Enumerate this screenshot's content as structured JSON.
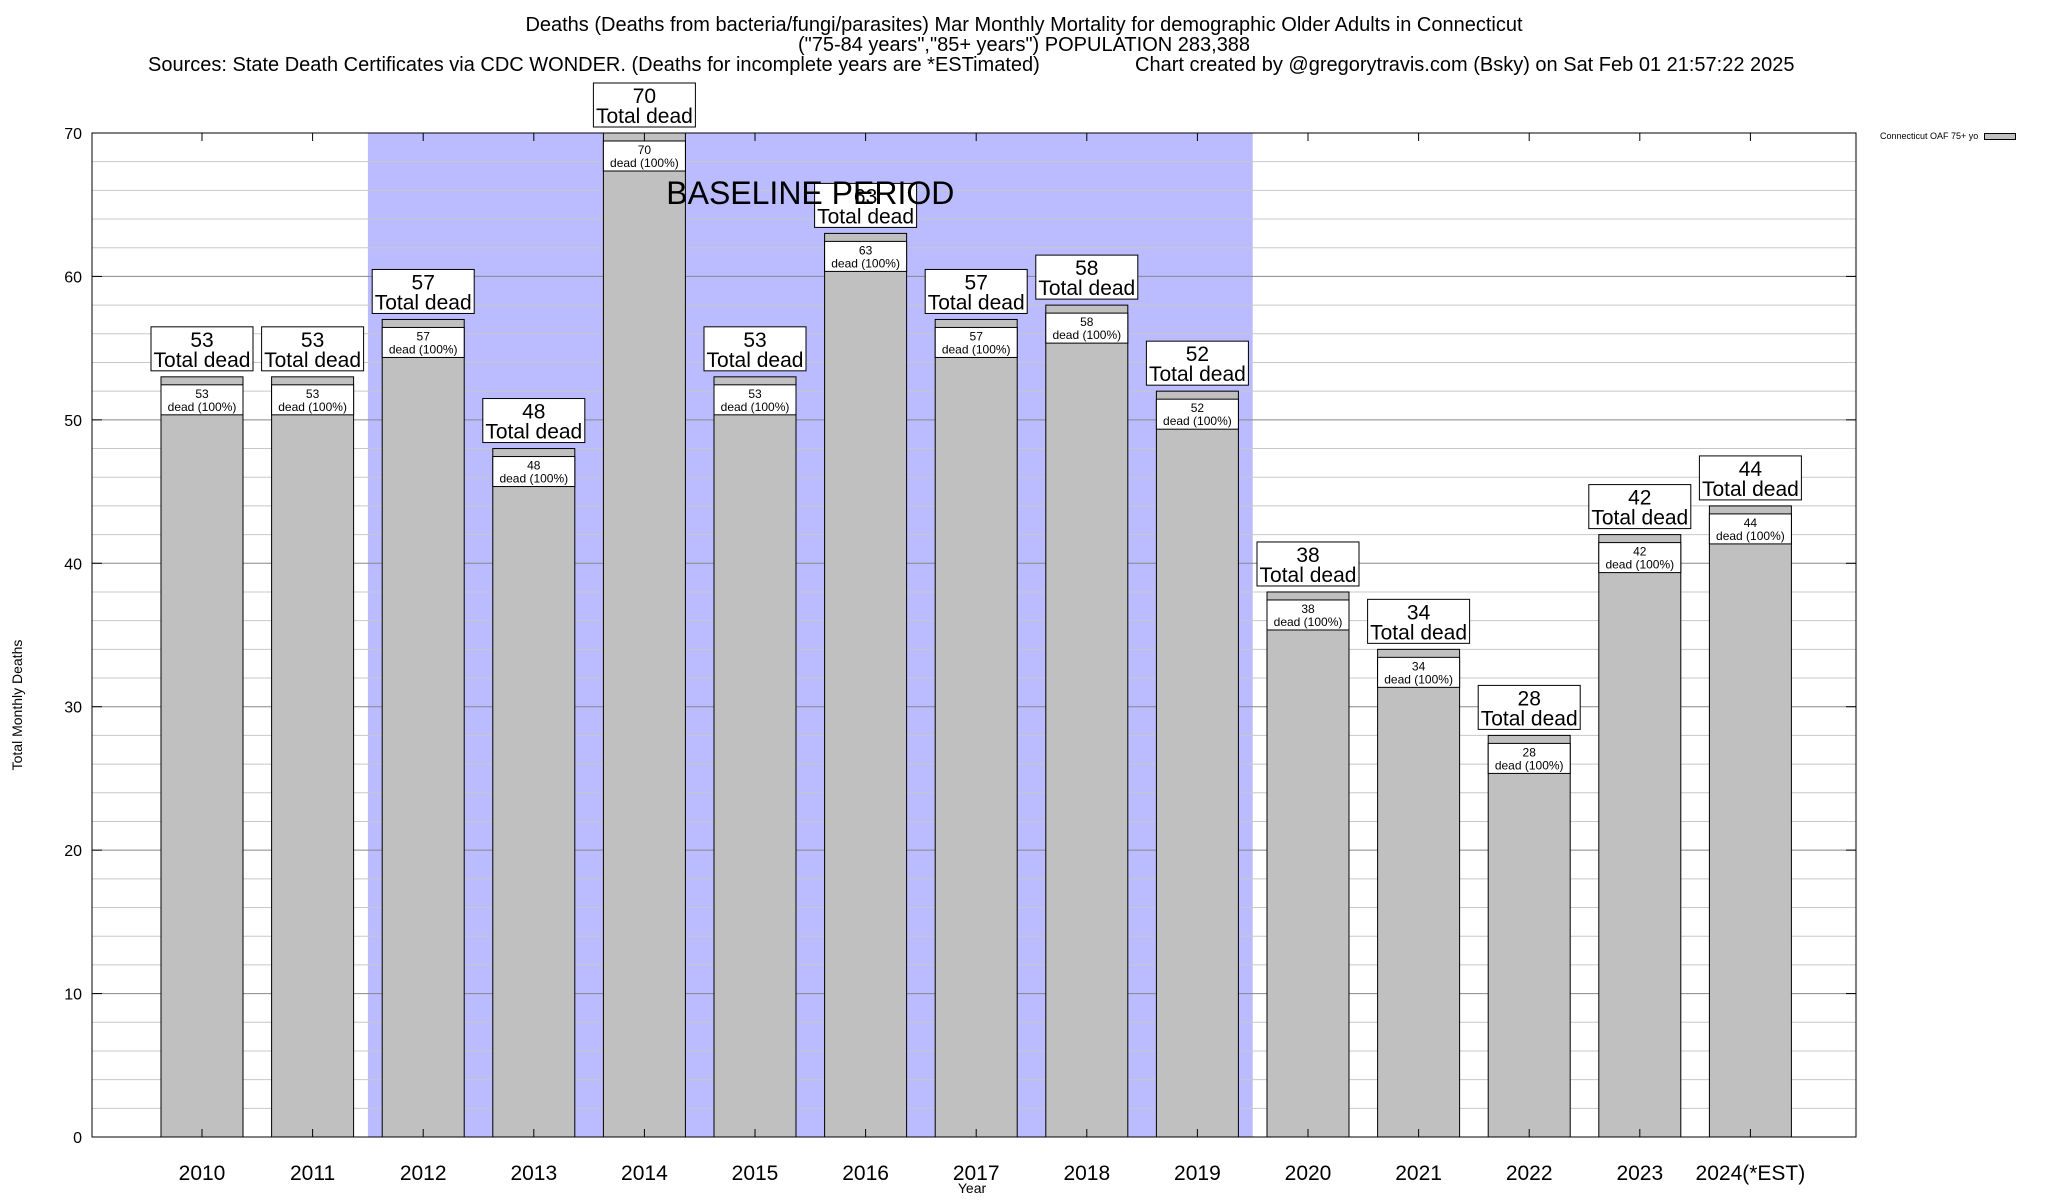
{
  "chart_data": {
    "type": "bar",
    "title_lines": [
      "Deaths (Deaths from bacteria/fungi/parasites) Mar Monthly Mortality for demographic Older Adults in Connecticut",
      "(\"75-84 years\",\"85+ years\") POPULATION 283,388"
    ],
    "source": "Sources: State Death Certificates via CDC WONDER. (Deaths for incomplete years are *ESTimated)",
    "credit": "Chart created by @gregorytravis.com (Bsky) on Sat Feb 01 21:57:22 2025",
    "xlabel": "Year",
    "ylabel": "Total Monthly Deaths",
    "ylim": [
      0,
      70
    ],
    "yticks": [
      0,
      10,
      20,
      30,
      40,
      50,
      60,
      70
    ],
    "categories": [
      "2010",
      "2011",
      "2012",
      "2013",
      "2014",
      "2015",
      "2016",
      "2017",
      "2018",
      "2019",
      "2020",
      "2021",
      "2022",
      "2023",
      "2024(*EST)"
    ],
    "series": [
      {
        "name": "Connecticut OAF 75+ yo",
        "values": [
          53,
          53,
          57,
          48,
          70,
          53,
          63,
          57,
          58,
          52,
          38,
          34,
          28,
          42,
          44
        ],
        "color": "#c0c0c0"
      }
    ],
    "top_label_text": "Total dead",
    "inner_label_text": "dead (100%)",
    "baseline": {
      "label": "BASELINE PERIOD",
      "start": "2012",
      "end": "2019",
      "color": "#bbbbff"
    },
    "grid": true
  }
}
